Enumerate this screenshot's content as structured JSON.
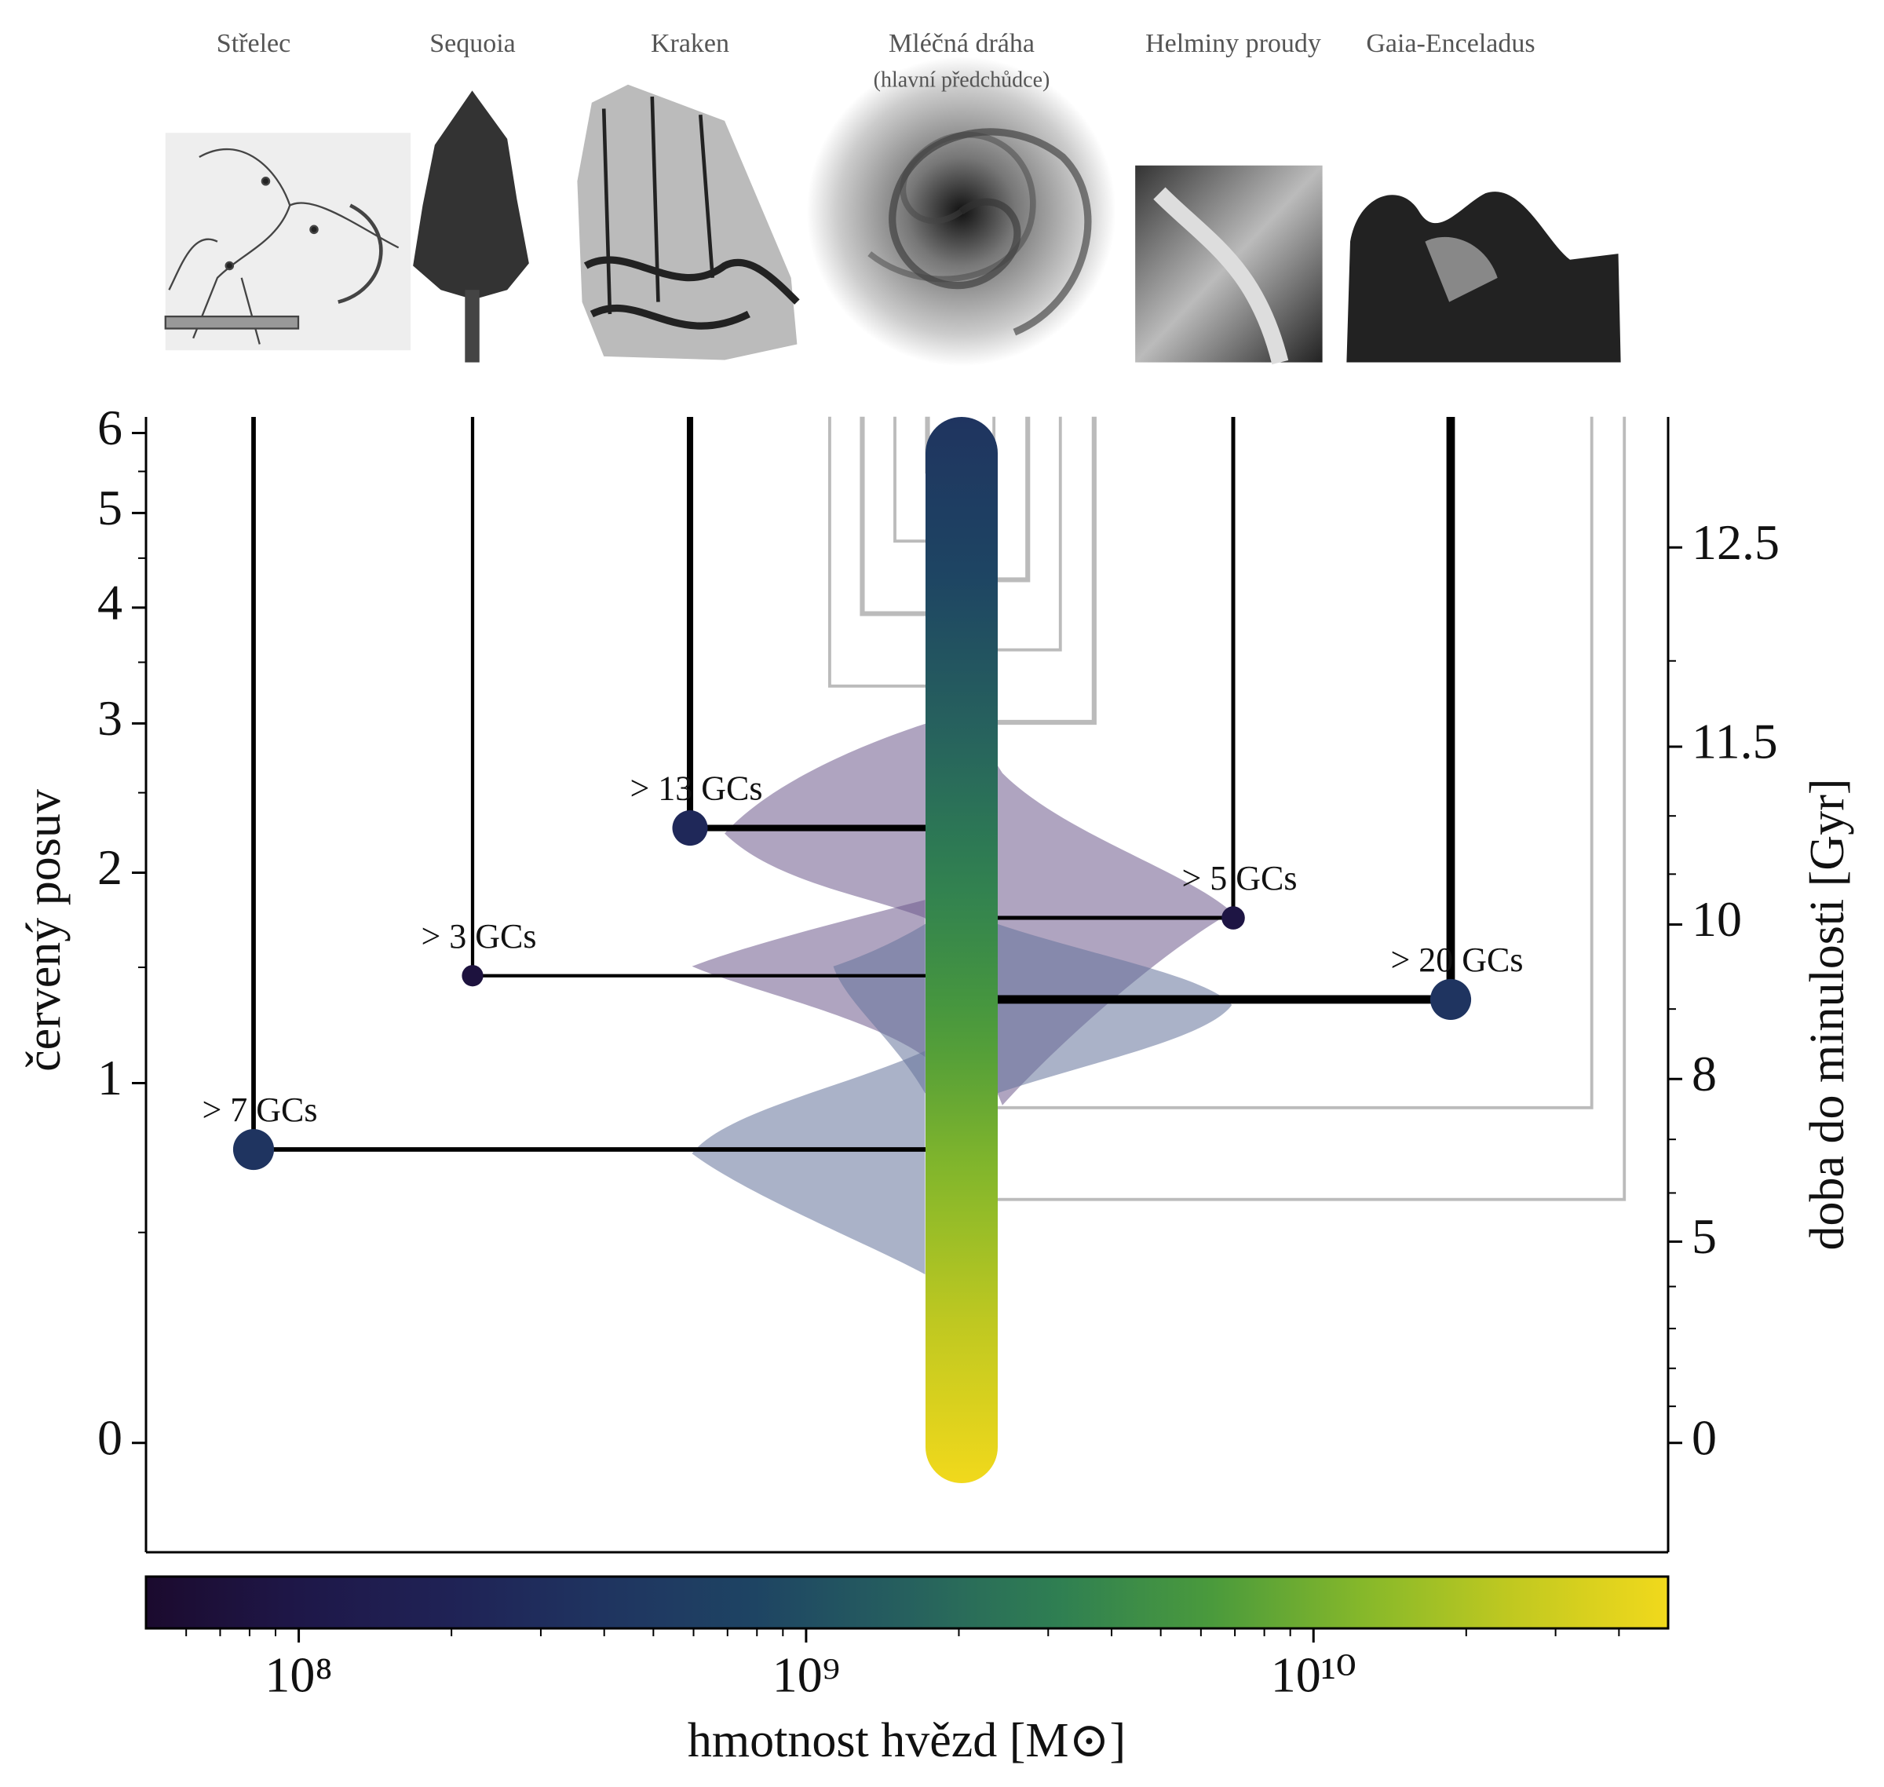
{
  "chart_data": {
    "type": "merger-tree",
    "ylabel": "červený posuv",
    "y2label": "doba do minulosti [Gyr]",
    "ylim": [
      -0.19,
      6.22
    ],
    "yticks": [
      0,
      1,
      2,
      3,
      4,
      5,
      6
    ],
    "yminorticks": [
      0.5,
      1.5,
      2.5,
      3.5,
      4.5,
      5.5
    ],
    "y2ticks": [
      0,
      5,
      8,
      10,
      11.5,
      12.5
    ],
    "y2minorticks": [
      1,
      2,
      3,
      4,
      6,
      7,
      9,
      10.5,
      11,
      12
    ],
    "main_branch": {
      "name": "Mléčná dráha",
      "note": "(hlavní předchůdce)"
    },
    "mergers": [
      {
        "name": "Střelec",
        "z": 0.76,
        "mass": 400000000,
        "gcs": 7,
        "gc_label": "> 7 GCs"
      },
      {
        "name": "Sequoia",
        "z": 1.46,
        "mass": 77000000,
        "gcs": 3,
        "gc_label": "> 3 GCs"
      },
      {
        "name": "Kraken",
        "z": 2.27,
        "mass": 250000000,
        "gcs": 13,
        "gc_label": "> 13 GCs"
      },
      {
        "name": "Helminy proudy",
        "z": 1.75,
        "mass": 90000000,
        "gcs": 5,
        "gc_label": "> 5 GCs"
      },
      {
        "name": "Gaia-Enceladus",
        "z": 1.35,
        "mass": 400000000,
        "gcs": 20,
        "gc_label": "> 20 GCs"
      }
    ],
    "colorbar": {
      "label": "hmotnost hvězd [M⊙]",
      "lim": [
        50000000,
        50000000000
      ],
      "ticks": [
        {
          "value": 100000000,
          "label": "10⁸"
        },
        {
          "value": 1000000000,
          "label": "10⁹"
        },
        {
          "value": 10000000000,
          "label": "10¹⁰"
        }
      ],
      "minor_ticks": [
        60000000,
        70000000,
        80000000,
        90000000,
        200000000,
        300000000,
        400000000,
        500000000,
        600000000,
        700000000,
        800000000,
        900000000,
        2000000000,
        3000000000,
        4000000000,
        5000000000,
        6000000000,
        7000000000,
        8000000000,
        9000000000,
        20000000000,
        30000000000,
        40000000000
      ],
      "colormap": [
        "#1b0a2e",
        "#1e1748",
        "#1f2255",
        "#1f3460",
        "#1e4463",
        "#26605e",
        "#2f7f52",
        "#4a9a3c",
        "#86b82a",
        "#c2c920",
        "#f1d91c"
      ]
    }
  }
}
